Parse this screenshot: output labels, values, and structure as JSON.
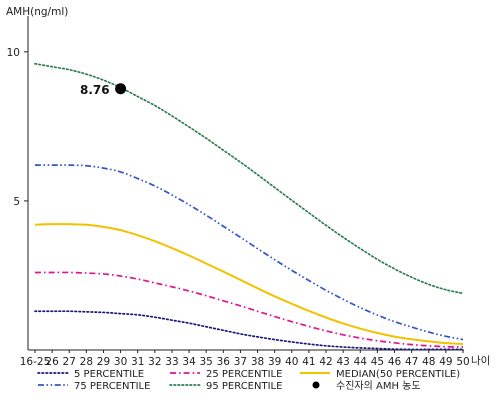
{
  "chart_data": {
    "type": "line",
    "title": "",
    "ylabel": "AMH(ng/ml)",
    "xlabel": "나이",
    "ylim": [
      0,
      11
    ],
    "yticks": [
      5,
      10
    ],
    "categories": [
      "16-25",
      "26",
      "27",
      "28",
      "29",
      "30",
      "31",
      "32",
      "33",
      "34",
      "35",
      "36",
      "37",
      "38",
      "39",
      "40",
      "41",
      "42",
      "43",
      "44",
      "45",
      "46",
      "47",
      "48",
      "49",
      "50"
    ],
    "series": [
      {
        "name": "5 PERCENTILE",
        "color": "#1a1a7a",
        "dash": "dotted",
        "values": [
          1.3,
          1.3,
          1.3,
          1.28,
          1.26,
          1.22,
          1.18,
          1.1,
          1.0,
          0.9,
          0.78,
          0.66,
          0.54,
          0.44,
          0.35,
          0.27,
          0.2,
          0.14,
          0.1,
          0.07,
          0.05,
          0.03,
          0.02,
          0.02,
          0.02,
          0.02
        ]
      },
      {
        "name": "25 PERCENTILE",
        "color": "#e0148c",
        "dash": "dashdot",
        "values": [
          2.6,
          2.6,
          2.6,
          2.58,
          2.55,
          2.48,
          2.38,
          2.25,
          2.12,
          1.98,
          1.82,
          1.65,
          1.48,
          1.3,
          1.12,
          0.95,
          0.79,
          0.64,
          0.51,
          0.4,
          0.31,
          0.24,
          0.18,
          0.14,
          0.11,
          0.1
        ]
      },
      {
        "name": "MEDIAN(50 PERCENTILE)",
        "color": "#f2c200",
        "dash": "solid",
        "values": [
          4.2,
          4.22,
          4.22,
          4.2,
          4.13,
          4.02,
          3.85,
          3.65,
          3.42,
          3.17,
          2.9,
          2.63,
          2.35,
          2.07,
          1.8,
          1.55,
          1.31,
          1.09,
          0.89,
          0.72,
          0.57,
          0.45,
          0.36,
          0.29,
          0.23,
          0.2
        ]
      },
      {
        "name": "75 PERCENTILE",
        "color": "#3355cc",
        "dash": "dashdotdot",
        "values": [
          6.2,
          6.2,
          6.2,
          6.18,
          6.1,
          5.97,
          5.75,
          5.5,
          5.2,
          4.87,
          4.52,
          4.15,
          3.78,
          3.4,
          3.03,
          2.67,
          2.33,
          2.0,
          1.7,
          1.42,
          1.17,
          0.95,
          0.77,
          0.6,
          0.46,
          0.35
        ]
      },
      {
        "name": "95 PERCENTILE",
        "color": "#2e7d4f",
        "dash": "dotted",
        "values": [
          9.6,
          9.5,
          9.4,
          9.25,
          9.05,
          8.8,
          8.5,
          8.2,
          7.85,
          7.48,
          7.1,
          6.7,
          6.3,
          5.88,
          5.45,
          5.02,
          4.6,
          4.18,
          3.78,
          3.4,
          3.04,
          2.72,
          2.44,
          2.2,
          2.02,
          1.9
        ]
      }
    ],
    "points": [
      {
        "name": "수진자의 AMH 농도",
        "x": "30",
        "y": 8.76,
        "label": "8.76",
        "color": "#000000"
      }
    ],
    "legend": {
      "placement": "bottom",
      "items": [
        {
          "label": "5 PERCENTILE",
          "type": "line",
          "color": "#1a1a7a",
          "dash": "dotted"
        },
        {
          "label": "25 PERCENTILE",
          "type": "line",
          "color": "#e0148c",
          "dash": "dashdot"
        },
        {
          "label": "MEDIAN(50 PERCENTILE)",
          "type": "line",
          "color": "#f2c200",
          "dash": "solid"
        },
        {
          "label": "75 PERCENTILE",
          "type": "line",
          "color": "#3355cc",
          "dash": "dashdotdot"
        },
        {
          "label": "95 PERCENTILE",
          "type": "line",
          "color": "#2e7d4f",
          "dash": "dotted"
        },
        {
          "label": "수진자의 AMH 농도",
          "type": "marker",
          "color": "#000000"
        }
      ]
    },
    "grid": false
  }
}
